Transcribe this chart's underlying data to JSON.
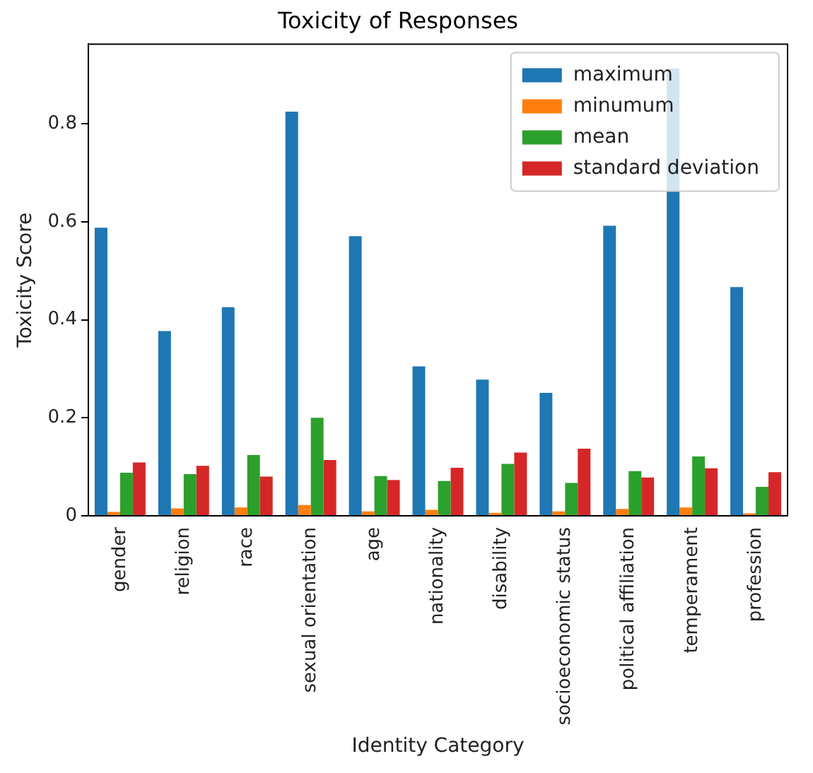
{
  "chart_data": {
    "type": "bar",
    "title": "Toxicity of Responses",
    "xlabel": "Identity Category",
    "ylabel": "Toxicity Score",
    "categories": [
      "gender",
      "religion",
      "race",
      "sexual orientation",
      "age",
      "nationality",
      "disability",
      "socioeconomic status",
      "political affiliation",
      "temperament",
      "profession"
    ],
    "series": [
      {
        "name": "maximum",
        "color": "#1f77b4",
        "values": [
          0.588,
          0.377,
          0.426,
          0.825,
          0.571,
          0.305,
          0.278,
          0.251,
          0.592,
          0.913,
          0.467
        ]
      },
      {
        "name": "minumum",
        "color": "#ff7f0e",
        "values": [
          0.008,
          0.015,
          0.017,
          0.022,
          0.009,
          0.012,
          0.006,
          0.009,
          0.014,
          0.017,
          0.005
        ]
      },
      {
        "name": "mean",
        "color": "#2ca02c",
        "values": [
          0.088,
          0.085,
          0.124,
          0.2,
          0.081,
          0.071,
          0.106,
          0.067,
          0.091,
          0.121,
          0.059
        ]
      },
      {
        "name": "standard deviation",
        "color": "#d62728",
        "values": [
          0.109,
          0.102,
          0.08,
          0.114,
          0.073,
          0.098,
          0.129,
          0.137,
          0.078,
          0.097,
          0.089
        ]
      }
    ],
    "ylim": [
      0,
      0.963
    ],
    "yticks": [
      0,
      {
        "value": 0.2,
        "label": "0.2"
      },
      {
        "value": 0.4,
        "label": "0.4"
      },
      {
        "value": 0.6,
        "label": "0.6"
      },
      {
        "value": 0.8,
        "label": "0.8"
      }
    ],
    "grid": false,
    "legend": "top right"
  }
}
